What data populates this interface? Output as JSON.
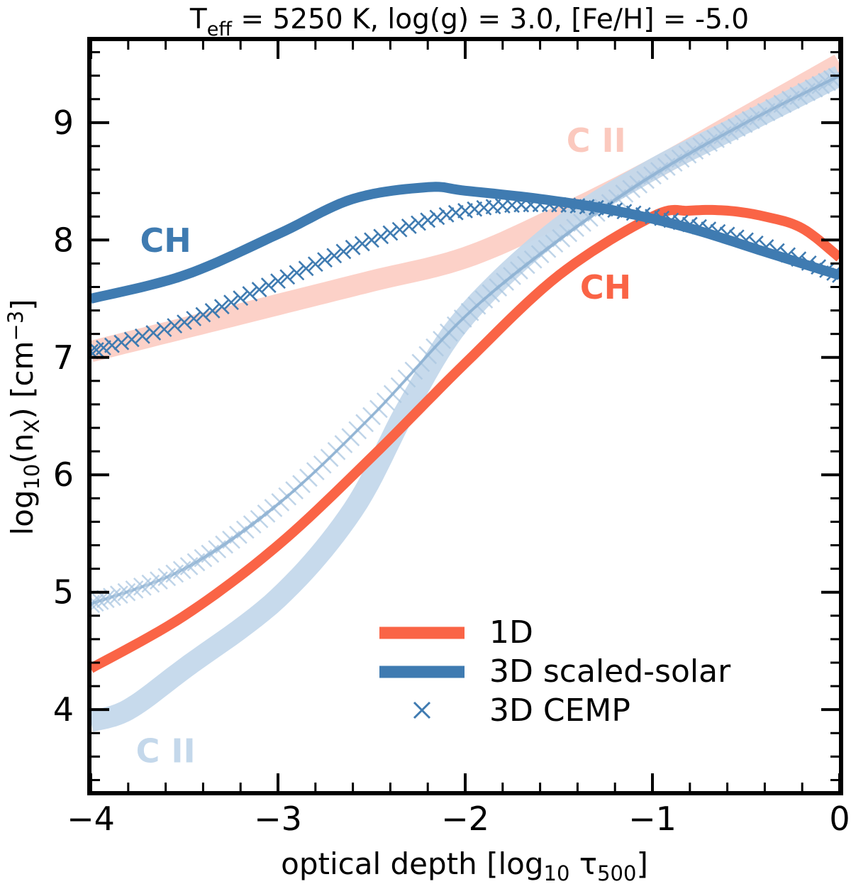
{
  "chart_data": {
    "type": "line",
    "title": {
      "T": "T",
      "sub": "eff",
      "rest": " = 5250 K,  log(g) = 3.0,  [Fe/H] = -5.0"
    },
    "xlabel": {
      "pre": "optical depth [log",
      "sub1": "10",
      "mid": " τ",
      "sub2": "500",
      "post": "]"
    },
    "ylabel": {
      "pre": "log",
      "sub1": "10",
      "mid": "(n",
      "sub2": "X",
      "post": ") [cm",
      "sup": "−3",
      "end": "]"
    },
    "xlim": [
      -4,
      0
    ],
    "ylim": [
      3.3,
      9.7
    ],
    "xticks": [
      -4,
      -3,
      -2,
      -1,
      0
    ],
    "xtick_labels": [
      "−4",
      "−3",
      "−2",
      "−1",
      "0"
    ],
    "yticks": [
      4,
      5,
      6,
      7,
      8,
      9
    ],
    "ytick_labels": [
      "4",
      "5",
      "6",
      "7",
      "8",
      "9"
    ],
    "colors": {
      "oned": "#fa6446",
      "threed": "#3f7bb1",
      "threed_light": "#c4d8eb",
      "ch_light": "#fbc9be"
    },
    "series": [
      {
        "name": "1D",
        "species": "CH",
        "x": [
          -4.0,
          -3.5,
          -3.0,
          -2.5,
          -2.0,
          -1.5,
          -1.0,
          -0.8,
          -0.6,
          -0.4,
          -0.2,
          0.0
        ],
        "y": [
          4.35,
          4.8,
          5.4,
          6.15,
          6.95,
          7.7,
          8.2,
          8.25,
          8.25,
          8.2,
          8.1,
          7.85
        ]
      },
      {
        "name": "1D",
        "species": "C II",
        "x": [
          -4.0,
          -3.5,
          -3.0,
          -2.5,
          -2.0,
          -1.5,
          -1.0,
          -0.5,
          0.0
        ],
        "y": [
          7.05,
          7.25,
          7.45,
          7.65,
          7.85,
          8.2,
          8.6,
          9.05,
          9.5
        ]
      },
      {
        "name": "3D scaled-solar",
        "species": "CH",
        "x": [
          -4.0,
          -3.5,
          -3.0,
          -2.6,
          -2.2,
          -2.0,
          -1.6,
          -1.2,
          -0.8,
          -0.4,
          0.0
        ],
        "y": [
          7.5,
          7.7,
          8.05,
          8.35,
          8.45,
          8.42,
          8.35,
          8.25,
          8.1,
          7.9,
          7.7
        ]
      },
      {
        "name": "3D scaled-solar",
        "species": "C II",
        "x": [
          -4.0,
          -3.8,
          -3.5,
          -3.0,
          -2.6,
          -2.3,
          -2.0,
          -1.5,
          -1.0,
          -0.5,
          0.0
        ],
        "y": [
          3.9,
          4.0,
          4.35,
          4.95,
          5.7,
          6.6,
          7.35,
          8.1,
          8.6,
          9.0,
          9.4
        ]
      },
      {
        "name": "3D CEMP",
        "species": "CH",
        "x": [
          -4.0,
          -3.5,
          -3.0,
          -2.5,
          -2.0,
          -1.5,
          -1.0,
          -0.5,
          0.0
        ],
        "y": [
          7.05,
          7.3,
          7.65,
          8.0,
          8.25,
          8.3,
          8.2,
          8.0,
          7.7
        ]
      },
      {
        "name": "3D CEMP",
        "species": "C II",
        "x": [
          -4.0,
          -3.5,
          -3.0,
          -2.5,
          -2.0,
          -1.5,
          -1.0,
          -0.5,
          0.0
        ],
        "y": [
          4.9,
          5.2,
          5.75,
          6.5,
          7.35,
          8.0,
          8.55,
          9.0,
          9.4
        ]
      }
    ],
    "legend": {
      "position": "lower-right",
      "entries": [
        "1D",
        "3D scaled-solar",
        "3D CEMP"
      ]
    },
    "annotations": [
      {
        "text": "CH",
        "x": -3.6,
        "y": 7.9,
        "color_key": "threed"
      },
      {
        "text": "CH",
        "x": -1.25,
        "y": 7.5,
        "color_key": "oned"
      },
      {
        "text": "C II",
        "x": -1.3,
        "y": 8.75,
        "color_key": "ch_light"
      },
      {
        "text": "C II",
        "x": -3.6,
        "y": 3.55,
        "color_key": "threed_light"
      }
    ]
  }
}
